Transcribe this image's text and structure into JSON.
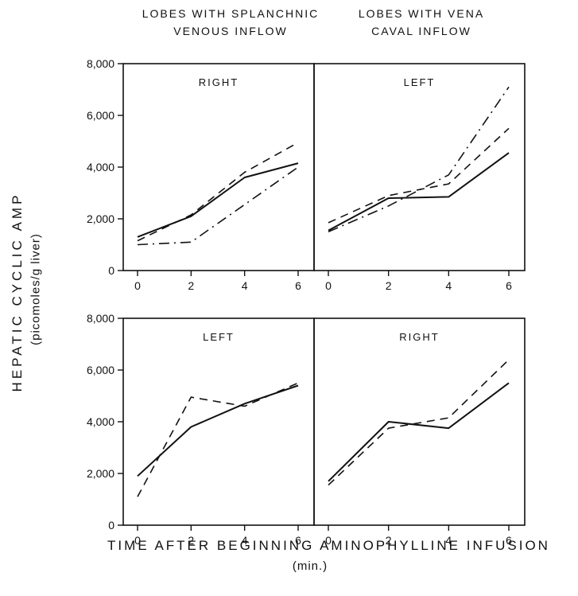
{
  "column_headers": [
    "LOBES WITH SPLANCHNIC\nVENOUS INFLOW",
    "LOBES WITH VENA\nCAVAL INFLOW"
  ],
  "y_axis_label_line1": "HEPATIC CYCLIC AMP",
  "y_axis_label_line2": "(picomoles/g liver)",
  "x_axis_label_line1": "TIME AFTER BEGINNING AMINOPHYLLINE INFUSION",
  "x_axis_label_line2": "(min.)",
  "chart_data": [
    {
      "type": "line",
      "title": "RIGHT",
      "x": [
        0,
        2,
        4,
        6
      ],
      "x_ticks": [
        "0",
        "2",
        "4",
        "6"
      ],
      "y_ticks": [
        "0",
        "2,000",
        "4,000",
        "6,000",
        "8,000"
      ],
      "ylim": [
        0,
        8000
      ],
      "series": [
        {
          "style": "solid",
          "values": [
            1300,
            2100,
            3600,
            4150
          ]
        },
        {
          "style": "dashed",
          "values": [
            1150,
            2150,
            3800,
            4950
          ]
        },
        {
          "style": "dashdot",
          "values": [
            1000,
            1100,
            2550,
            4000
          ]
        }
      ]
    },
    {
      "type": "line",
      "title": "LEFT",
      "x": [
        0,
        2,
        4,
        6
      ],
      "x_ticks": [
        "0",
        "2",
        "4",
        "6"
      ],
      "y_ticks": [
        "0",
        "2,000",
        "4,000",
        "6,000",
        "8,000"
      ],
      "ylim": [
        0,
        8000
      ],
      "series": [
        {
          "style": "solid",
          "values": [
            1550,
            2800,
            2850,
            4550
          ]
        },
        {
          "style": "dashed",
          "values": [
            1850,
            2900,
            3350,
            5500
          ]
        },
        {
          "style": "dashdot",
          "values": [
            1500,
            2500,
            3700,
            7100
          ]
        }
      ]
    },
    {
      "type": "line",
      "title": "LEFT",
      "x": [
        0,
        2,
        4,
        6
      ],
      "x_ticks": [
        "0",
        "2",
        "4",
        "6"
      ],
      "y_ticks": [
        "0",
        "2,000",
        "4,000",
        "6,000",
        "8,000"
      ],
      "ylim": [
        0,
        8000
      ],
      "series": [
        {
          "style": "solid",
          "values": [
            1900,
            3800,
            4700,
            5400
          ]
        },
        {
          "style": "dashed",
          "values": [
            1100,
            4950,
            4600,
            5500
          ]
        }
      ]
    },
    {
      "type": "line",
      "title": "RIGHT",
      "x": [
        0,
        2,
        4,
        6
      ],
      "x_ticks": [
        "0",
        "2",
        "4",
        "6"
      ],
      "y_ticks": [
        "0",
        "2,000",
        "4,000",
        "6,000",
        "8,000"
      ],
      "ylim": [
        0,
        8000
      ],
      "series": [
        {
          "style": "solid",
          "values": [
            1700,
            4000,
            3750,
            5500
          ]
        },
        {
          "style": "dashed",
          "values": [
            1550,
            3750,
            4150,
            6400
          ]
        }
      ]
    }
  ]
}
